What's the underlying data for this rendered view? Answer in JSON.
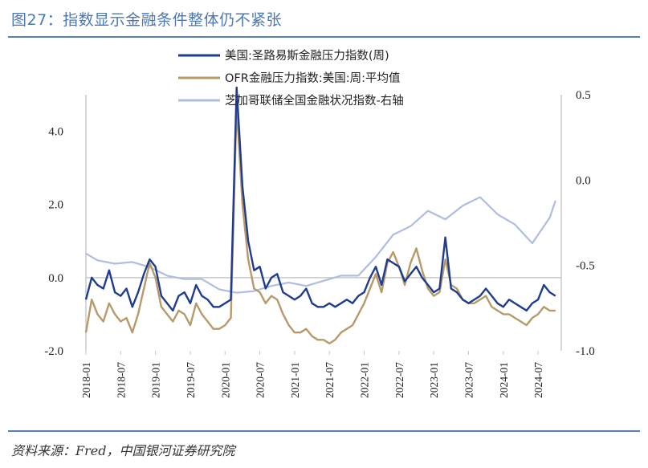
{
  "figure": {
    "title": "图27：指数显示金融条件整体仍不紧张",
    "source": "资料来源：Fred，中国银河证券研究院"
  },
  "colors": {
    "accent": "#5a7fb5",
    "series1": "#1f3c8f",
    "series2": "#b89a6a",
    "series3": "#aebde0"
  },
  "chart_data": {
    "type": "line",
    "title": "",
    "xlabel": "",
    "ylabel": "",
    "legend_position": "top",
    "grid": false,
    "x_ticks": [
      "2018-01",
      "2018-07",
      "2019-01",
      "2019-07",
      "2020-01",
      "2020-07",
      "2021-01",
      "2021-07",
      "2022-01",
      "2022-07",
      "2023-01",
      "2023-07",
      "2024-01",
      "2024-07"
    ],
    "y_left": {
      "lim": [
        -2.0,
        5.0
      ],
      "ticks": [
        -2.0,
        0.0,
        2.0,
        4.0
      ],
      "tick_labels": [
        "-2.0",
        "0.0",
        "2.0",
        "4.0"
      ]
    },
    "y_right": {
      "lim": [
        -1.0,
        0.5
      ],
      "ticks": [
        -1.0,
        -0.5,
        0.0,
        0.5
      ],
      "tick_labels": [
        "-1.0",
        "-0.5",
        "0.0",
        "0.5"
      ]
    },
    "series": [
      {
        "name": "美国:圣路易斯金融压力指数(周)",
        "axis": "left",
        "points": [
          [
            "2018-01",
            -0.6
          ],
          [
            "2018-02",
            0.0
          ],
          [
            "2018-03",
            -0.2
          ],
          [
            "2018-04",
            -0.3
          ],
          [
            "2018-05",
            0.2
          ],
          [
            "2018-06",
            -0.4
          ],
          [
            "2018-07",
            -0.5
          ],
          [
            "2018-08",
            -0.3
          ],
          [
            "2018-09",
            -0.8
          ],
          [
            "2018-10",
            -0.4
          ],
          [
            "2018-11",
            0.1
          ],
          [
            "2018-12",
            0.5
          ],
          [
            "2019-01",
            0.3
          ],
          [
            "2019-02",
            -0.5
          ],
          [
            "2019-03",
            -0.7
          ],
          [
            "2019-04",
            -0.9
          ],
          [
            "2019-05",
            -0.5
          ],
          [
            "2019-06",
            -0.4
          ],
          [
            "2019-07",
            -0.7
          ],
          [
            "2019-08",
            -0.2
          ],
          [
            "2019-09",
            -0.5
          ],
          [
            "2019-10",
            -0.6
          ],
          [
            "2019-11",
            -0.8
          ],
          [
            "2019-12",
            -0.8
          ],
          [
            "2020-01",
            -0.7
          ],
          [
            "2020-02",
            -0.6
          ],
          [
            "2020-03",
            5.2
          ],
          [
            "2020-04",
            2.5
          ],
          [
            "2020-05",
            1.0
          ],
          [
            "2020-06",
            0.2
          ],
          [
            "2020-07",
            0.3
          ],
          [
            "2020-08",
            -0.3
          ],
          [
            "2020-09",
            0.0
          ],
          [
            "2020-10",
            0.1
          ],
          [
            "2020-11",
            -0.4
          ],
          [
            "2020-12",
            -0.5
          ],
          [
            "2021-01",
            -0.6
          ],
          [
            "2021-02",
            -0.5
          ],
          [
            "2021-03",
            -0.3
          ],
          [
            "2021-04",
            -0.7
          ],
          [
            "2021-05",
            -0.8
          ],
          [
            "2021-06",
            -0.8
          ],
          [
            "2021-07",
            -0.7
          ],
          [
            "2021-08",
            -0.8
          ],
          [
            "2021-09",
            -0.7
          ],
          [
            "2021-10",
            -0.6
          ],
          [
            "2021-11",
            -0.7
          ],
          [
            "2021-12",
            -0.5
          ],
          [
            "2022-01",
            -0.4
          ],
          [
            "2022-02",
            0.0
          ],
          [
            "2022-03",
            0.3
          ],
          [
            "2022-04",
            -0.2
          ],
          [
            "2022-05",
            0.5
          ],
          [
            "2022-06",
            0.4
          ],
          [
            "2022-07",
            0.3
          ],
          [
            "2022-08",
            -0.1
          ],
          [
            "2022-09",
            0.1
          ],
          [
            "2022-10",
            0.3
          ],
          [
            "2022-11",
            0.0
          ],
          [
            "2022-12",
            -0.2
          ],
          [
            "2023-01",
            -0.4
          ],
          [
            "2023-02",
            -0.3
          ],
          [
            "2023-03",
            1.1
          ],
          [
            "2023-04",
            -0.3
          ],
          [
            "2023-05",
            -0.4
          ],
          [
            "2023-06",
            -0.6
          ],
          [
            "2023-07",
            -0.7
          ],
          [
            "2023-08",
            -0.6
          ],
          [
            "2023-09",
            -0.5
          ],
          [
            "2023-10",
            -0.3
          ],
          [
            "2023-11",
            -0.5
          ],
          [
            "2023-12",
            -0.7
          ],
          [
            "2024-01",
            -0.8
          ],
          [
            "2024-02",
            -0.6
          ],
          [
            "2024-03",
            -0.7
          ],
          [
            "2024-04",
            -0.8
          ],
          [
            "2024-05",
            -0.9
          ],
          [
            "2024-06",
            -0.7
          ],
          [
            "2024-07",
            -0.6
          ],
          [
            "2024-08",
            -0.2
          ],
          [
            "2024-09",
            -0.4
          ],
          [
            "2024-10",
            -0.5
          ]
        ]
      },
      {
        "name": "OFR金融压力指数:美国:周:平均值",
        "axis": "left",
        "points": [
          [
            "2018-01",
            -1.5
          ],
          [
            "2018-02",
            -0.6
          ],
          [
            "2018-03",
            -1.0
          ],
          [
            "2018-04",
            -1.2
          ],
          [
            "2018-05",
            -0.7
          ],
          [
            "2018-06",
            -1.0
          ],
          [
            "2018-07",
            -1.2
          ],
          [
            "2018-08",
            -1.1
          ],
          [
            "2018-09",
            -1.5
          ],
          [
            "2018-10",
            -1.0
          ],
          [
            "2018-11",
            -0.3
          ],
          [
            "2018-12",
            0.4
          ],
          [
            "2019-01",
            0.0
          ],
          [
            "2019-02",
            -0.8
          ],
          [
            "2019-03",
            -1.0
          ],
          [
            "2019-04",
            -1.2
          ],
          [
            "2019-05",
            -0.9
          ],
          [
            "2019-06",
            -1.0
          ],
          [
            "2019-07",
            -1.3
          ],
          [
            "2019-08",
            -0.7
          ],
          [
            "2019-09",
            -1.0
          ],
          [
            "2019-10",
            -1.2
          ],
          [
            "2019-11",
            -1.4
          ],
          [
            "2019-12",
            -1.4
          ],
          [
            "2020-01",
            -1.3
          ],
          [
            "2020-02",
            -1.1
          ],
          [
            "2020-03",
            4.7
          ],
          [
            "2020-04",
            2.0
          ],
          [
            "2020-05",
            0.5
          ],
          [
            "2020-06",
            -0.3
          ],
          [
            "2020-07",
            -0.4
          ],
          [
            "2020-08",
            -0.7
          ],
          [
            "2020-09",
            -0.5
          ],
          [
            "2020-10",
            -0.6
          ],
          [
            "2020-11",
            -1.0
          ],
          [
            "2020-12",
            -1.3
          ],
          [
            "2021-01",
            -1.5
          ],
          [
            "2021-02",
            -1.5
          ],
          [
            "2021-03",
            -1.4
          ],
          [
            "2021-04",
            -1.6
          ],
          [
            "2021-05",
            -1.7
          ],
          [
            "2021-06",
            -1.7
          ],
          [
            "2021-07",
            -1.8
          ],
          [
            "2021-08",
            -1.7
          ],
          [
            "2021-09",
            -1.5
          ],
          [
            "2021-10",
            -1.4
          ],
          [
            "2021-11",
            -1.3
          ],
          [
            "2021-12",
            -1.0
          ],
          [
            "2022-01",
            -0.7
          ],
          [
            "2022-02",
            -0.3
          ],
          [
            "2022-03",
            0.1
          ],
          [
            "2022-04",
            -0.4
          ],
          [
            "2022-05",
            0.4
          ],
          [
            "2022-06",
            0.7
          ],
          [
            "2022-07",
            0.3
          ],
          [
            "2022-08",
            -0.2
          ],
          [
            "2022-09",
            0.4
          ],
          [
            "2022-10",
            0.8
          ],
          [
            "2022-11",
            0.2
          ],
          [
            "2022-12",
            -0.3
          ],
          [
            "2023-01",
            -0.5
          ],
          [
            "2023-02",
            -0.4
          ],
          [
            "2023-03",
            0.5
          ],
          [
            "2023-04",
            -0.2
          ],
          [
            "2023-05",
            -0.3
          ],
          [
            "2023-06",
            -0.6
          ],
          [
            "2023-07",
            -0.7
          ],
          [
            "2023-08",
            -0.7
          ],
          [
            "2023-09",
            -0.6
          ],
          [
            "2023-10",
            -0.5
          ],
          [
            "2023-11",
            -0.8
          ],
          [
            "2023-12",
            -0.9
          ],
          [
            "2024-01",
            -1.0
          ],
          [
            "2024-02",
            -1.0
          ],
          [
            "2024-03",
            -1.1
          ],
          [
            "2024-04",
            -1.2
          ],
          [
            "2024-05",
            -1.3
          ],
          [
            "2024-06",
            -1.1
          ],
          [
            "2024-07",
            -1.0
          ],
          [
            "2024-08",
            -0.8
          ],
          [
            "2024-09",
            -0.9
          ],
          [
            "2024-10",
            -0.9
          ]
        ]
      },
      {
        "name": "芝加哥联储全国金融状况指数-右轴",
        "axis": "right",
        "points": [
          [
            "2018-01",
            -0.43
          ],
          [
            "2018-03",
            -0.47
          ],
          [
            "2018-06",
            -0.49
          ],
          [
            "2018-09",
            -0.48
          ],
          [
            "2018-12",
            -0.51
          ],
          [
            "2019-03",
            -0.56
          ],
          [
            "2019-06",
            -0.58
          ],
          [
            "2019-09",
            -0.58
          ],
          [
            "2019-12",
            -0.64
          ],
          [
            "2020-03",
            -0.66
          ],
          [
            "2020-06",
            -0.65
          ],
          [
            "2020-09",
            -0.62
          ],
          [
            "2020-12",
            -0.6
          ],
          [
            "2021-03",
            -0.62
          ],
          [
            "2021-06",
            -0.59
          ],
          [
            "2021-09",
            -0.56
          ],
          [
            "2021-12",
            -0.56
          ],
          [
            "2022-03",
            -0.45
          ],
          [
            "2022-06",
            -0.32
          ],
          [
            "2022-09",
            -0.27
          ],
          [
            "2022-12",
            -0.18
          ],
          [
            "2023-03",
            -0.23
          ],
          [
            "2023-06",
            -0.15
          ],
          [
            "2023-09",
            -0.1
          ],
          [
            "2023-12",
            -0.2
          ],
          [
            "2024-03",
            -0.26
          ],
          [
            "2024-06",
            -0.37
          ],
          [
            "2024-09",
            -0.22
          ],
          [
            "2024-10",
            -0.12
          ]
        ]
      }
    ]
  }
}
